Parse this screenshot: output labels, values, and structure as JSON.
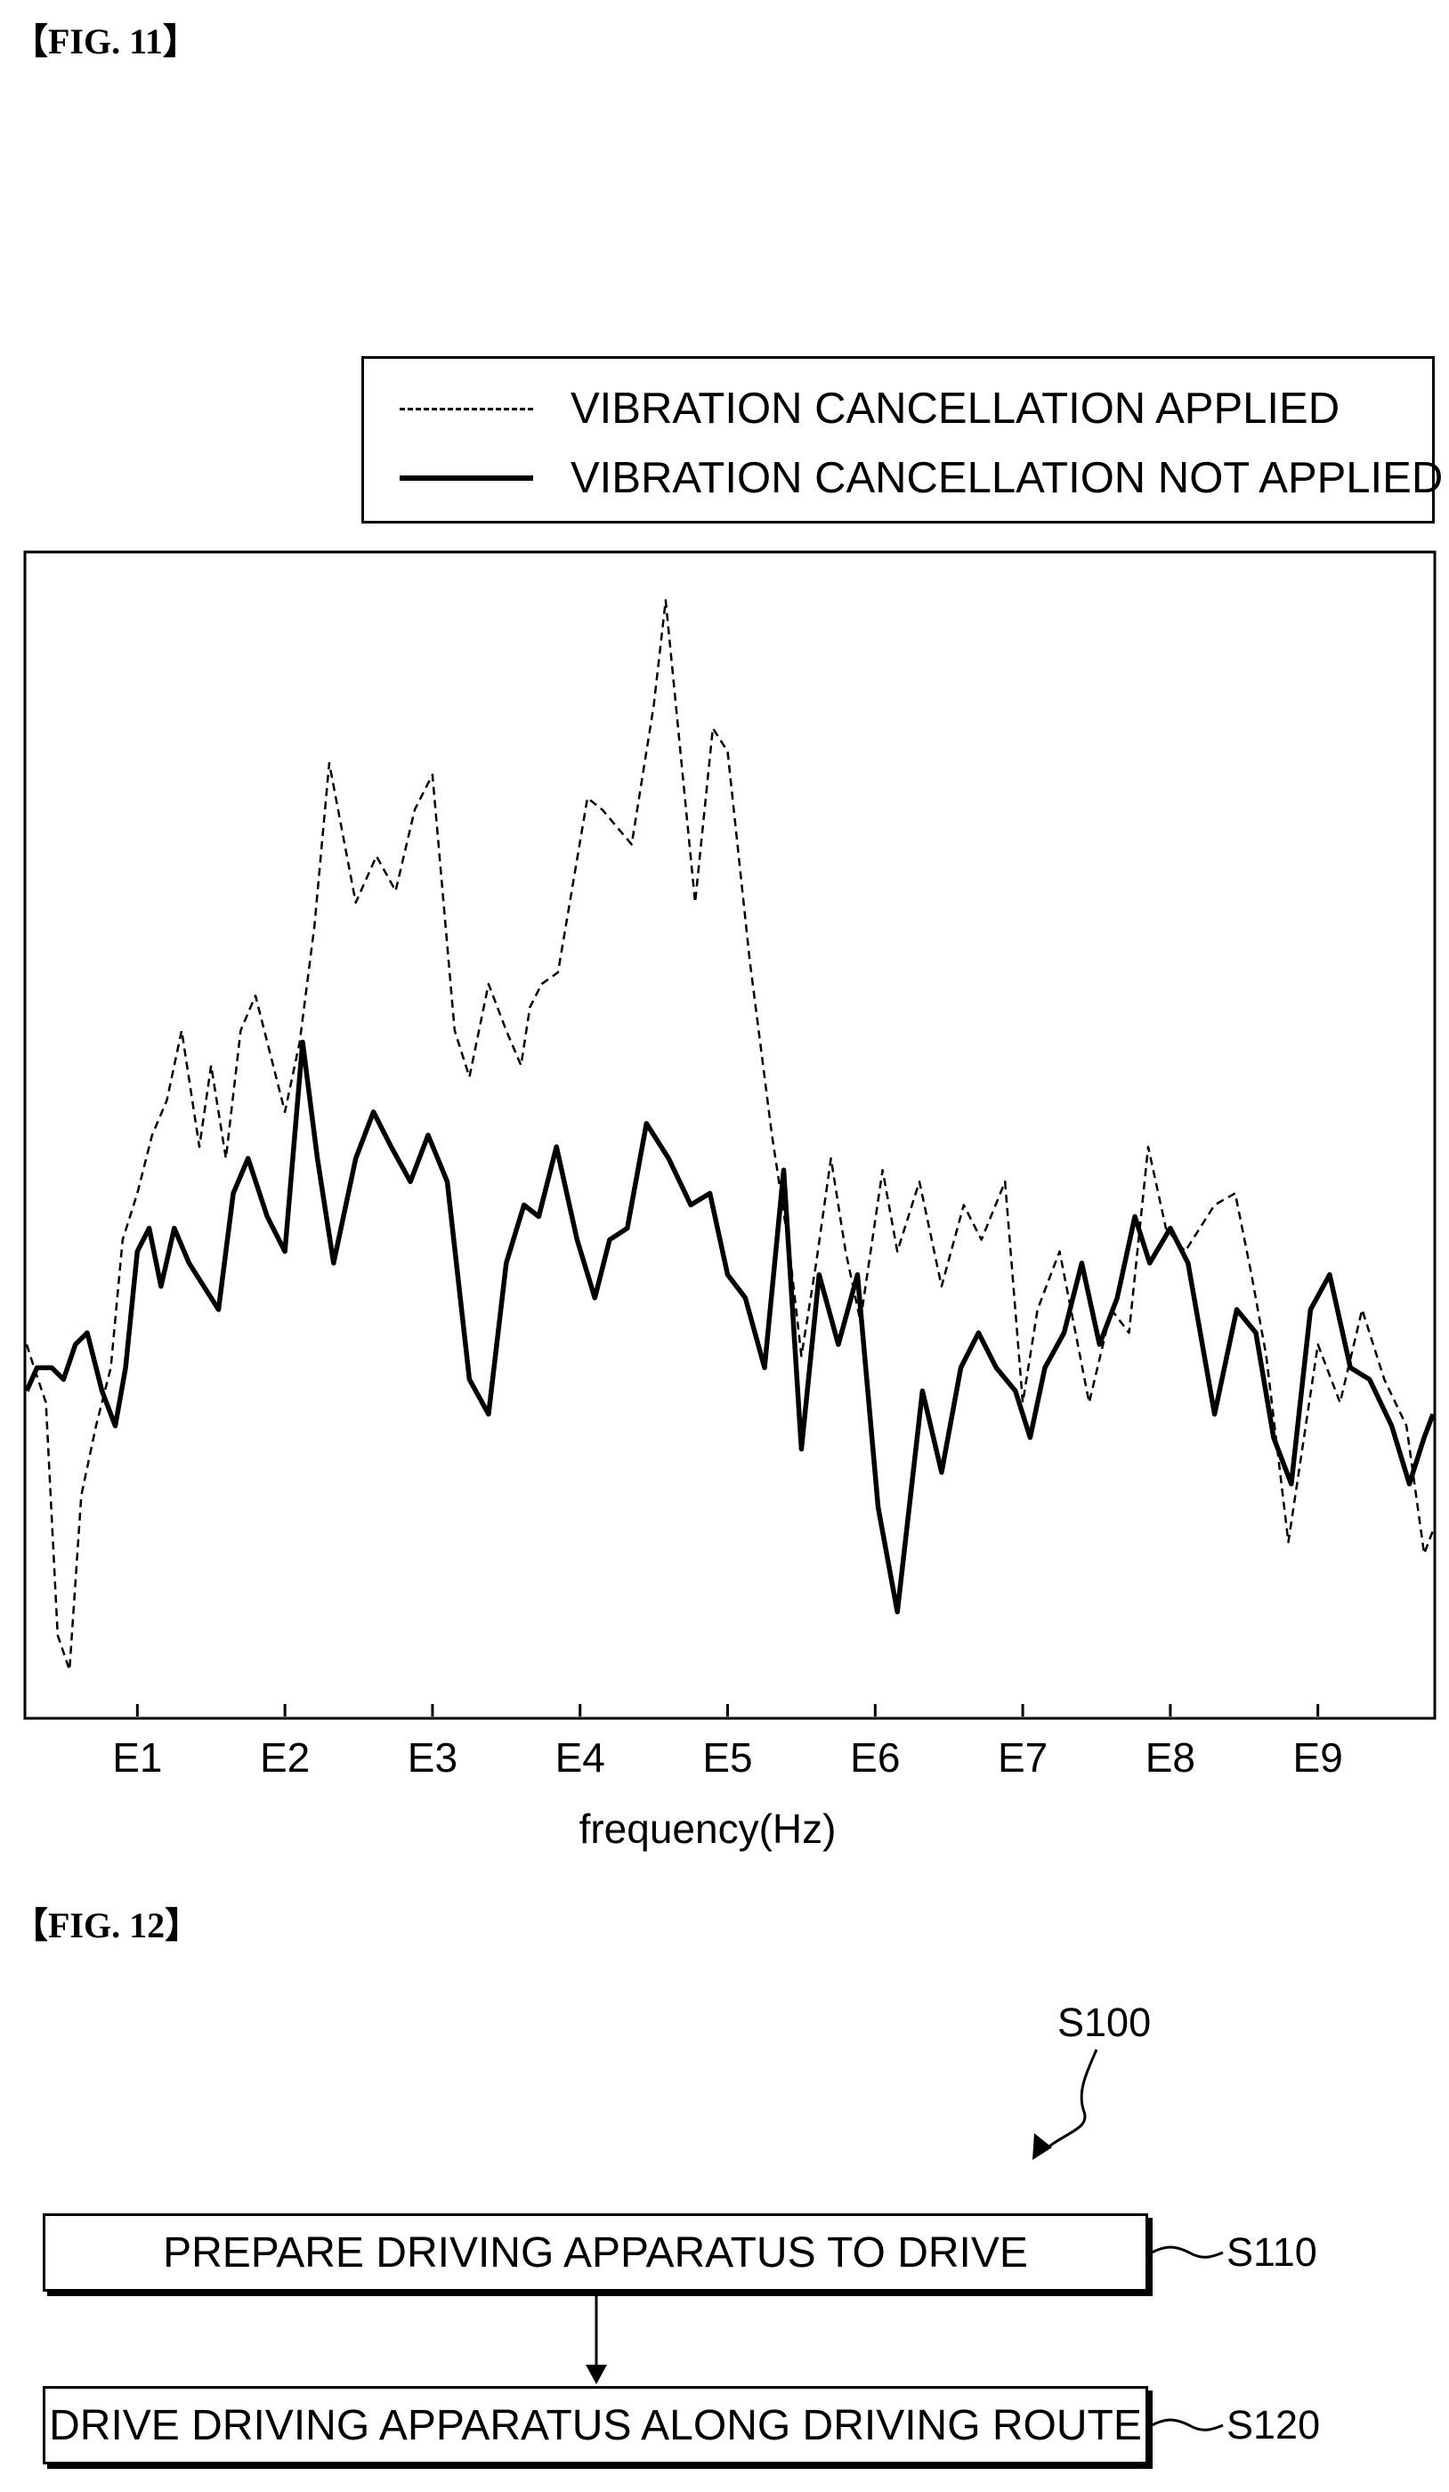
{
  "figures": {
    "fig11_label": "【FIG. 11】",
    "fig12_label": "【FIG. 12】"
  },
  "chart_data": {
    "type": "line",
    "title": "",
    "xlabel": "frequency(Hz)",
    "ylabel": "",
    "x_ticks": [
      "E1",
      "E2",
      "E3",
      "E4",
      "E5",
      "E6",
      "E7",
      "E8",
      "E9"
    ],
    "xlim": [
      0.25,
      9.78
    ],
    "ylim": [
      0,
      100
    ],
    "grid": false,
    "legend_position": "top-right, above plot",
    "series": [
      {
        "name": "VIBRATION CANCELLATION APPLIED",
        "style": "dashed",
        "points": [
          [
            0.25,
            32
          ],
          [
            0.3,
            30
          ],
          [
            0.38,
            27
          ],
          [
            0.46,
            7
          ],
          [
            0.54,
            4
          ],
          [
            0.62,
            19
          ],
          [
            0.72,
            25
          ],
          [
            0.82,
            30
          ],
          [
            0.9,
            41
          ],
          [
            1.0,
            45
          ],
          [
            1.1,
            50
          ],
          [
            1.2,
            53
          ],
          [
            1.3,
            59
          ],
          [
            1.42,
            49
          ],
          [
            1.5,
            56
          ],
          [
            1.6,
            48
          ],
          [
            1.7,
            59
          ],
          [
            1.8,
            62
          ],
          [
            1.9,
            57
          ],
          [
            2.0,
            52
          ],
          [
            2.1,
            58
          ],
          [
            2.2,
            68
          ],
          [
            2.3,
            82
          ],
          [
            2.48,
            70
          ],
          [
            2.62,
            74
          ],
          [
            2.75,
            71
          ],
          [
            2.88,
            78
          ],
          [
            3.0,
            81
          ],
          [
            3.15,
            59
          ],
          [
            3.25,
            55
          ],
          [
            3.38,
            63
          ],
          [
            3.5,
            59
          ],
          [
            3.6,
            56
          ],
          [
            3.66,
            61
          ],
          [
            3.74,
            63
          ],
          [
            3.85,
            64
          ],
          [
            4.05,
            79
          ],
          [
            4.15,
            78
          ],
          [
            4.35,
            75
          ],
          [
            4.5,
            87
          ],
          [
            4.58,
            96
          ],
          [
            4.78,
            70
          ],
          [
            4.9,
            85
          ],
          [
            5.0,
            83
          ],
          [
            5.15,
            65
          ],
          [
            5.3,
            50
          ],
          [
            5.42,
            40
          ],
          [
            5.5,
            31
          ],
          [
            5.6,
            39
          ],
          [
            5.7,
            48
          ],
          [
            5.8,
            40
          ],
          [
            5.9,
            34
          ],
          [
            6.05,
            47
          ],
          [
            6.15,
            40
          ],
          [
            6.3,
            46
          ],
          [
            6.45,
            37
          ],
          [
            6.6,
            44
          ],
          [
            6.72,
            41
          ],
          [
            6.88,
            46
          ],
          [
            7.0,
            27
          ],
          [
            7.1,
            35
          ],
          [
            7.25,
            40
          ],
          [
            7.45,
            27
          ],
          [
            7.6,
            35
          ],
          [
            7.72,
            33
          ],
          [
            7.85,
            49
          ],
          [
            7.97,
            42
          ],
          [
            8.1,
            40
          ],
          [
            8.3,
            44
          ],
          [
            8.44,
            45
          ],
          [
            8.55,
            38
          ],
          [
            8.65,
            31
          ],
          [
            8.8,
            15
          ],
          [
            9.0,
            32
          ],
          [
            9.15,
            27
          ],
          [
            9.3,
            35
          ],
          [
            9.45,
            29
          ],
          [
            9.6,
            25
          ],
          [
            9.72,
            14
          ],
          [
            9.78,
            16
          ]
        ]
      },
      {
        "name": "VIBRATION CANCELLATION NOT APPLIED",
        "style": "solid",
        "points": [
          [
            0.25,
            28
          ],
          [
            0.32,
            30
          ],
          [
            0.42,
            30
          ],
          [
            0.5,
            29
          ],
          [
            0.58,
            32
          ],
          [
            0.66,
            33
          ],
          [
            0.76,
            28
          ],
          [
            0.85,
            25
          ],
          [
            0.92,
            30
          ],
          [
            1.0,
            40
          ],
          [
            1.08,
            42
          ],
          [
            1.16,
            37
          ],
          [
            1.25,
            42
          ],
          [
            1.35,
            39
          ],
          [
            1.45,
            37
          ],
          [
            1.55,
            35
          ],
          [
            1.65,
            45
          ],
          [
            1.75,
            48
          ],
          [
            1.88,
            43
          ],
          [
            2.0,
            40
          ],
          [
            2.12,
            58
          ],
          [
            2.22,
            48
          ],
          [
            2.33,
            39
          ],
          [
            2.48,
            48
          ],
          [
            2.6,
            52
          ],
          [
            2.72,
            49
          ],
          [
            2.85,
            46
          ],
          [
            2.97,
            50
          ],
          [
            3.1,
            46
          ],
          [
            3.25,
            29
          ],
          [
            3.38,
            26
          ],
          [
            3.5,
            39
          ],
          [
            3.62,
            44
          ],
          [
            3.72,
            43
          ],
          [
            3.84,
            49
          ],
          [
            3.98,
            41
          ],
          [
            4.1,
            36
          ],
          [
            4.2,
            41
          ],
          [
            4.32,
            42
          ],
          [
            4.45,
            51
          ],
          [
            4.6,
            48
          ],
          [
            4.75,
            44
          ],
          [
            4.88,
            45
          ],
          [
            5.0,
            38
          ],
          [
            5.12,
            36
          ],
          [
            5.25,
            30
          ],
          [
            5.38,
            47
          ],
          [
            5.5,
            23
          ],
          [
            5.62,
            38
          ],
          [
            5.75,
            32
          ],
          [
            5.88,
            38
          ],
          [
            6.02,
            18
          ],
          [
            6.15,
            9
          ],
          [
            6.32,
            28
          ],
          [
            6.45,
            21
          ],
          [
            6.58,
            30
          ],
          [
            6.7,
            33
          ],
          [
            6.82,
            30
          ],
          [
            6.95,
            28
          ],
          [
            7.05,
            24
          ],
          [
            7.15,
            30
          ],
          [
            7.28,
            33
          ],
          [
            7.4,
            39
          ],
          [
            7.52,
            32
          ],
          [
            7.64,
            36
          ],
          [
            7.76,
            43
          ],
          [
            7.86,
            39
          ],
          [
            8.0,
            42
          ],
          [
            8.12,
            39
          ],
          [
            8.3,
            26
          ],
          [
            8.45,
            35
          ],
          [
            8.58,
            33
          ],
          [
            8.7,
            24
          ],
          [
            8.82,
            20
          ],
          [
            8.95,
            35
          ],
          [
            9.08,
            38
          ],
          [
            9.22,
            30
          ],
          [
            9.35,
            29
          ],
          [
            9.5,
            25
          ],
          [
            9.62,
            20
          ],
          [
            9.72,
            24
          ],
          [
            9.78,
            26
          ]
        ]
      }
    ]
  },
  "flowchart": {
    "ref_main": "S100",
    "steps": [
      {
        "ref": "S110",
        "text": "PREPARE DRIVING APPARATUS TO DRIVE"
      },
      {
        "ref": "S120",
        "text": "DRIVE DRIVING APPARATUS ALONG DRIVING ROUTE"
      }
    ]
  }
}
